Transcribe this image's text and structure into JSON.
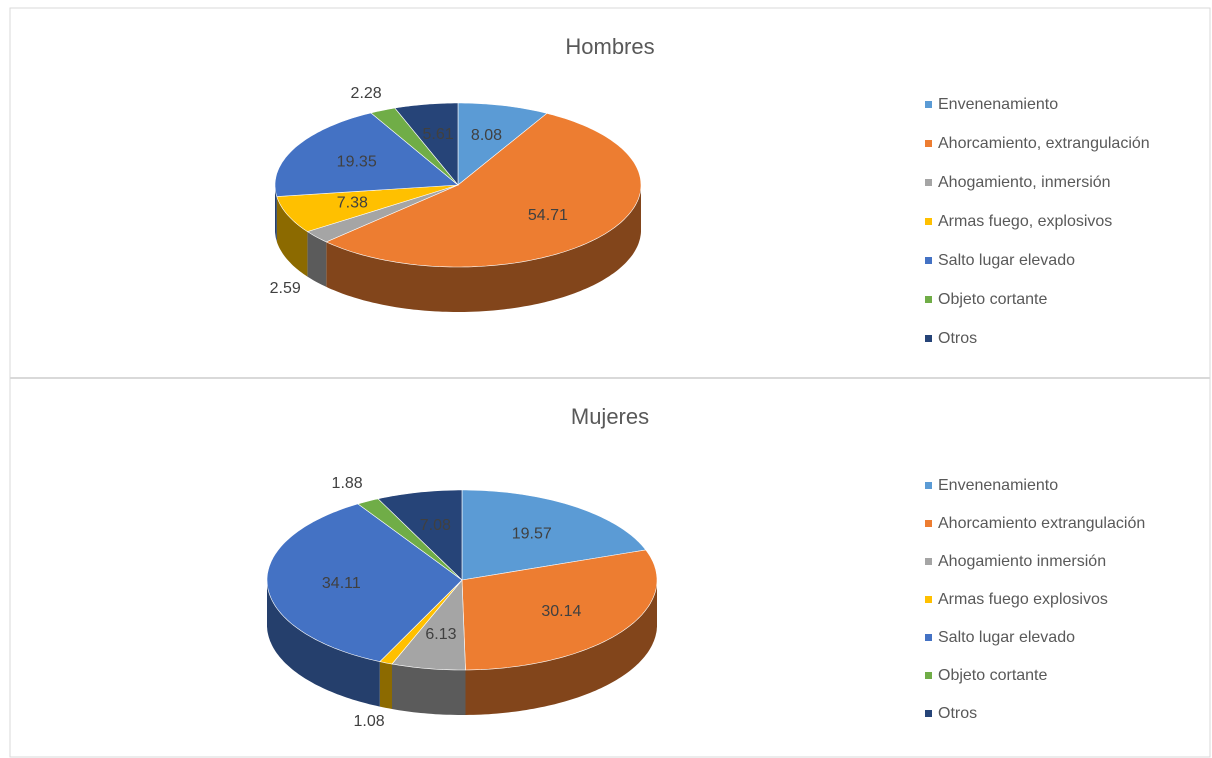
{
  "chart_data": [
    {
      "type": "pie",
      "title": "Hombres",
      "categories": [
        "Envenenamiento",
        "Ahorcamiento, extrangulación",
        "Ahogamiento, inmersión",
        "Armas fuego, explosivos",
        "Salto lugar elevado",
        "Objeto cortante",
        "Otros"
      ],
      "values": [
        8.08,
        54.71,
        2.59,
        7.38,
        19.35,
        2.28,
        5.61
      ],
      "colors": [
        "#5b9bd5",
        "#ed7d31",
        "#a5a5a5",
        "#ffc000",
        "#4472c4",
        "#70ad47",
        "#264478"
      ],
      "legend": "right"
    },
    {
      "type": "pie",
      "title": "Mujeres",
      "categories": [
        "Envenenamiento",
        "Ahorcamiento extrangulación",
        "Ahogamiento inmersión",
        "Armas fuego explosivos",
        "Salto lugar elevado",
        "Objeto cortante",
        "Otros"
      ],
      "values": [
        19.57,
        30.14,
        6.13,
        1.08,
        34.11,
        1.88,
        7.08
      ],
      "colors": [
        "#5b9bd5",
        "#ed7d31",
        "#a5a5a5",
        "#ffc000",
        "#4472c4",
        "#70ad47",
        "#264478"
      ],
      "legend": "right"
    }
  ]
}
